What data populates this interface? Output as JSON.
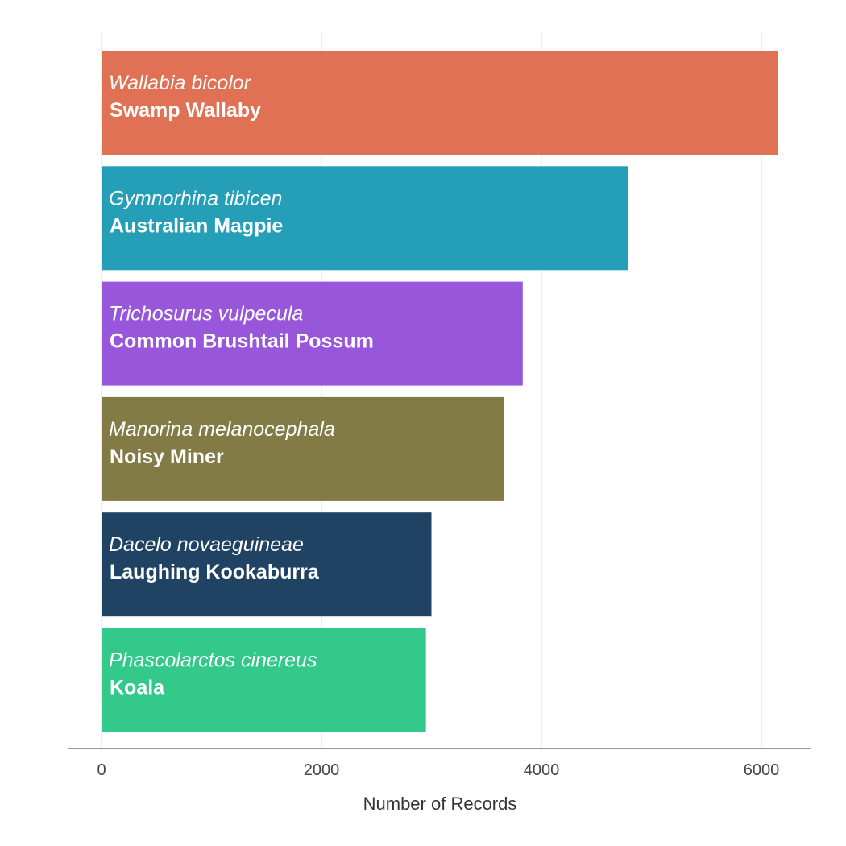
{
  "chart_data": {
    "type": "bar",
    "orientation": "horizontal",
    "title": "",
    "xlabel": "Number of Records",
    "ylabel": "",
    "xlim": [
      0,
      6300
    ],
    "xticks": [
      0,
      2000,
      4000,
      6000
    ],
    "grid": true,
    "legend": "none",
    "categories": [
      {
        "scientific": "Wallabia bicolor",
        "common": "Swamp Wallaby",
        "value": 6150,
        "color": "#e07155"
      },
      {
        "scientific": "Gymnorhina tibicen",
        "common": "Australian Magpie",
        "value": 4790,
        "color": "#259eb7"
      },
      {
        "scientific": "Trichosurus vulpecula",
        "common": "Common Brushtail Possum",
        "value": 3830,
        "color": "#9857db"
      },
      {
        "scientific": "Manorina melanocephala",
        "common": "Noisy Miner",
        "value": 3660,
        "color": "#827b45"
      },
      {
        "scientific": "Dacelo novaeguineae",
        "common": "Laughing Kookaburra",
        "value": 3000,
        "color": "#204263"
      },
      {
        "scientific": "Phascolarctos cinereus",
        "common": "Koala",
        "value": 2950,
        "color": "#32c98a"
      }
    ]
  }
}
